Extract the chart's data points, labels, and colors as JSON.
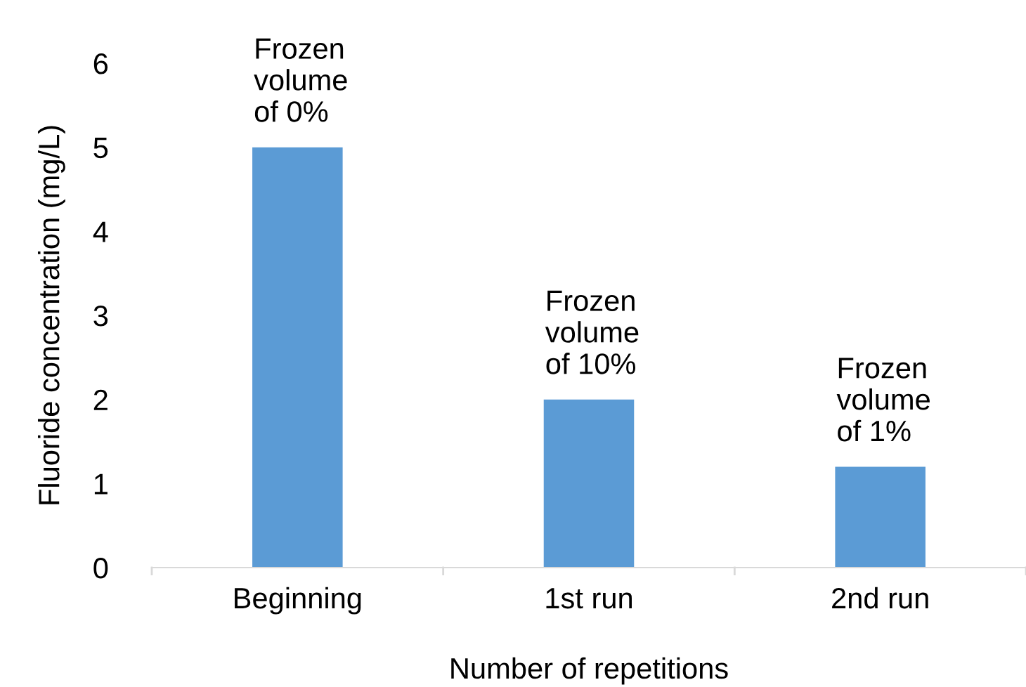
{
  "chart_data": {
    "type": "bar",
    "xlabel": "Number of repetitions",
    "ylabel": "Fluoride concentration (mg/L)",
    "categories": [
      "Beginning",
      "1st run",
      "2nd run"
    ],
    "values": [
      5,
      2,
      1.2
    ],
    "color": "#5b9bd5",
    "ylim": [
      0,
      6
    ],
    "yticks": [
      0,
      1,
      2,
      3,
      4,
      5,
      6
    ],
    "grid": false,
    "legend": false,
    "annotations": [
      {
        "text": "Frozen\nvolume\nof 0%",
        "x": "Beginning",
        "y": 5
      },
      {
        "text": "Frozen\nvolume\nof 10%",
        "x": "1st run",
        "y": 2
      },
      {
        "text": "Frozen\nvolume\nof 1%",
        "x": "2nd run",
        "y": 1.2
      }
    ]
  }
}
